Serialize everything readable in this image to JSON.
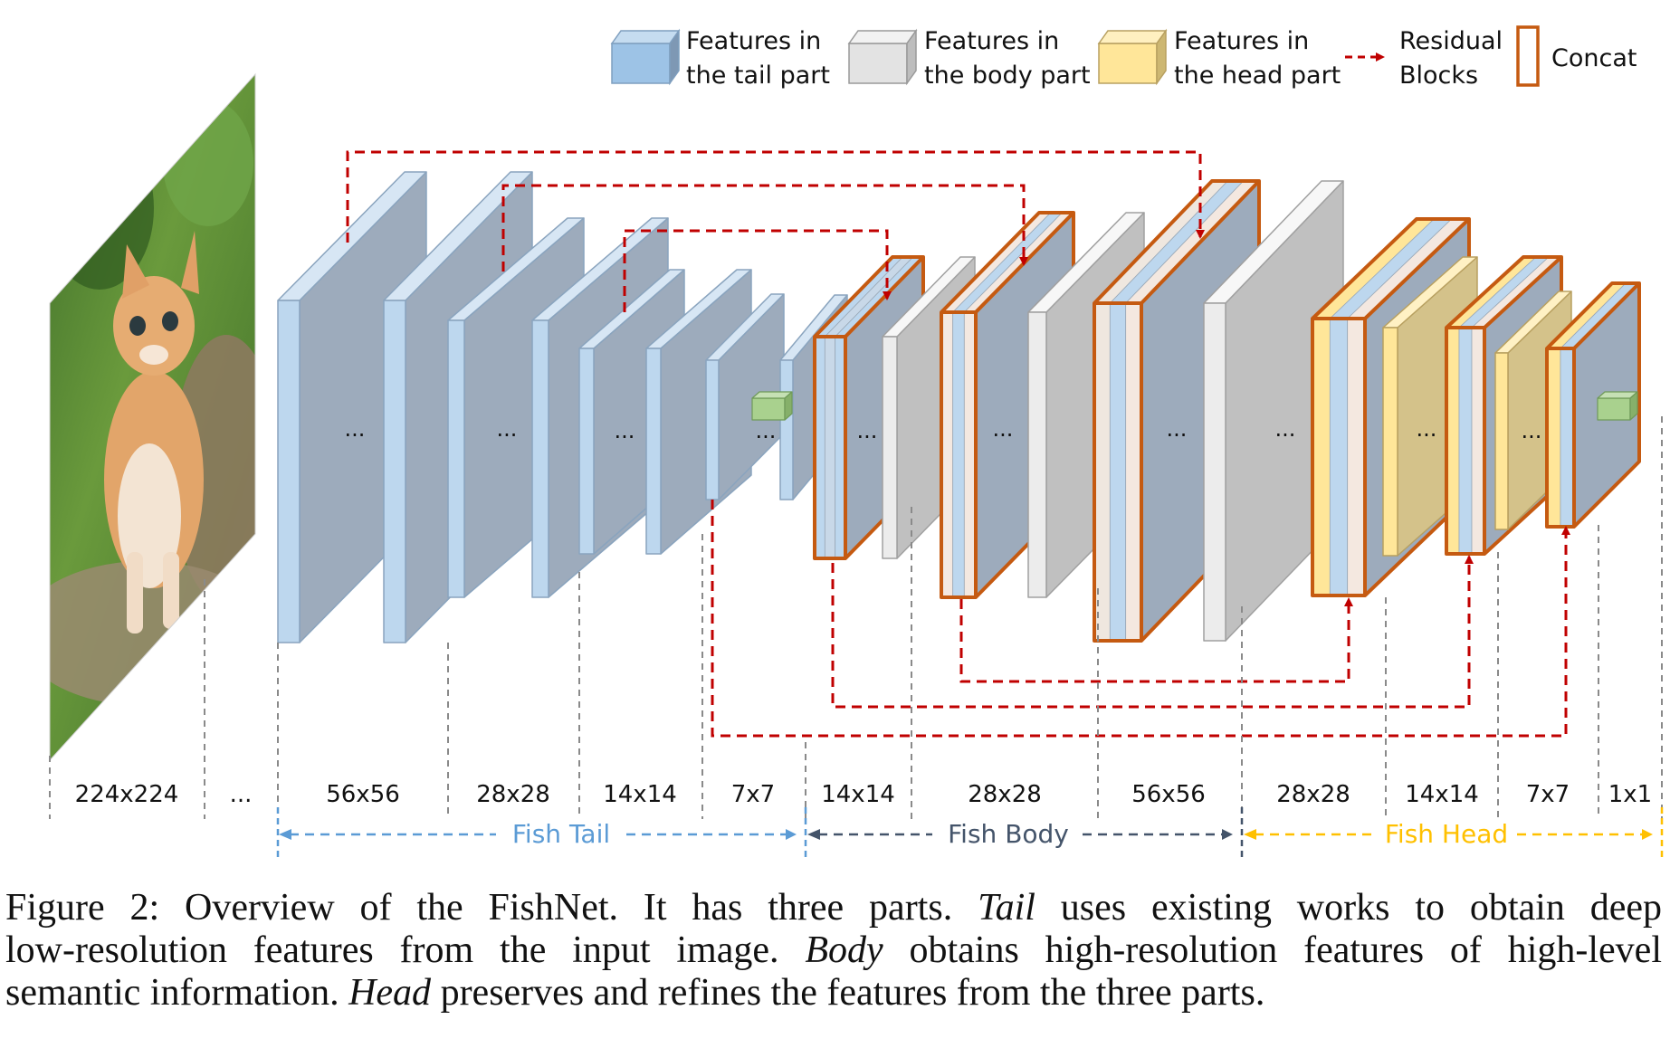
{
  "legend": {
    "tail": {
      "line1": "Features in",
      "line2": "the tail part"
    },
    "body": {
      "line1": "Features in",
      "line2": "the body part"
    },
    "head": {
      "line1": "Features in",
      "line2": "the head part"
    },
    "residual": {
      "line1": "Residual",
      "line2": "Blocks"
    },
    "concat": "Concat"
  },
  "ellipsis": "...",
  "resolutions": {
    "r224": "224x224",
    "dots": "...",
    "tail_56": "56x56",
    "tail_28": "28x28",
    "tail_14": "14x14",
    "tail_7": "7x7",
    "body_14": "14x14",
    "body_28": "28x28",
    "body_56": "56x56",
    "head_28": "28x28",
    "head_14": "14x14",
    "head_7": "7x7",
    "head_1": "1x1"
  },
  "parts": {
    "tail": "Fish Tail",
    "body": "Fish Body",
    "head": "Fish Head"
  },
  "colors": {
    "tail_front": "#bdd7ee",
    "tail_side": "#9dabbc",
    "body_front": "#ececec",
    "body_side": "#c0c0c0",
    "head_front": "#ffe699",
    "head_side": "#d4c28a",
    "concat_border": "#c55a11",
    "residual_arrow": "#c00000",
    "tail_label": "#5b9bd5",
    "body_label": "#44546a",
    "head_label": "#ffc000"
  },
  "caption": {
    "line1_prefix": "Figure 2: Overview of the FishNet. It has three parts. ",
    "line1_em": "Tail",
    "line1_suffix": " uses existing works to obtain deep",
    "line2_prefix": "low-resolution features from the input image. ",
    "line2_em": "Body",
    "line2_suffix": " obtains high-resolution features of high-level",
    "line3_prefix": "semantic information. ",
    "line3_em": "Head",
    "line3_suffix": " preserves and refines the features from the three parts."
  }
}
